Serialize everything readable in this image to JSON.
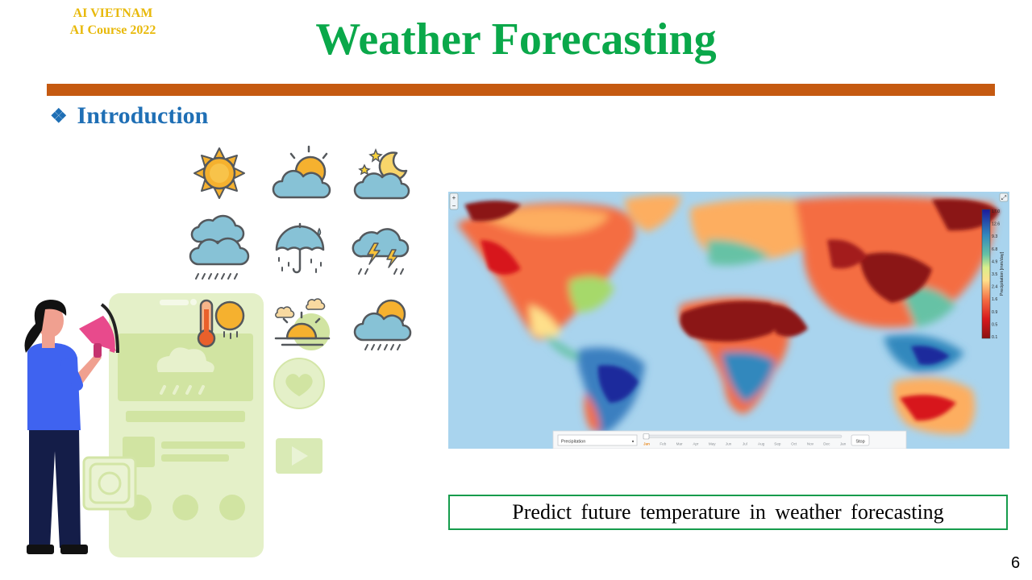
{
  "header": {
    "brand_line1": "AI VIETNAM",
    "brand_line2": "AI Course 2022",
    "title": "Weather Forecasting"
  },
  "section": {
    "bullet": "❖",
    "title": "Introduction"
  },
  "illustration": {
    "icons": [
      "sun-icon",
      "partly-cloudy-icon",
      "cloudy-night-icon",
      "rain-cloud-icon",
      "umbrella-rain-icon",
      "thunderstorm-icon",
      "thermometer-sun-icon",
      "sunrise-icon",
      "cloudy-rain-icon"
    ]
  },
  "map": {
    "dropdown_value": "Precipitation",
    "months": [
      "Jan",
      "Feb",
      "Mar",
      "Apr",
      "May",
      "Jun",
      "Jul",
      "Aug",
      "Sep",
      "Oct",
      "Nov",
      "Dec",
      "Jan"
    ],
    "active_month_index": 0,
    "stop_label": "Stop",
    "legend_values": [
      "17.0",
      "12.6",
      "9.3",
      "6.8",
      "4.9",
      "3.5",
      "2.4",
      "1.6",
      "0.9",
      "0.5",
      "0.1"
    ],
    "legend_label": "Precipitation [mm/day]",
    "zoom_in_label": "+",
    "zoom_out_label": "−",
    "fullscreen_label": "⤢"
  },
  "caption": "Predict future temperature in weather forecasting",
  "page_number": "6",
  "colors": {
    "title": "#0aa84a",
    "brand": "#e8b90a",
    "rule": "#c55a11",
    "section": "#1f6fb5",
    "caption_border": "#169c4c"
  }
}
